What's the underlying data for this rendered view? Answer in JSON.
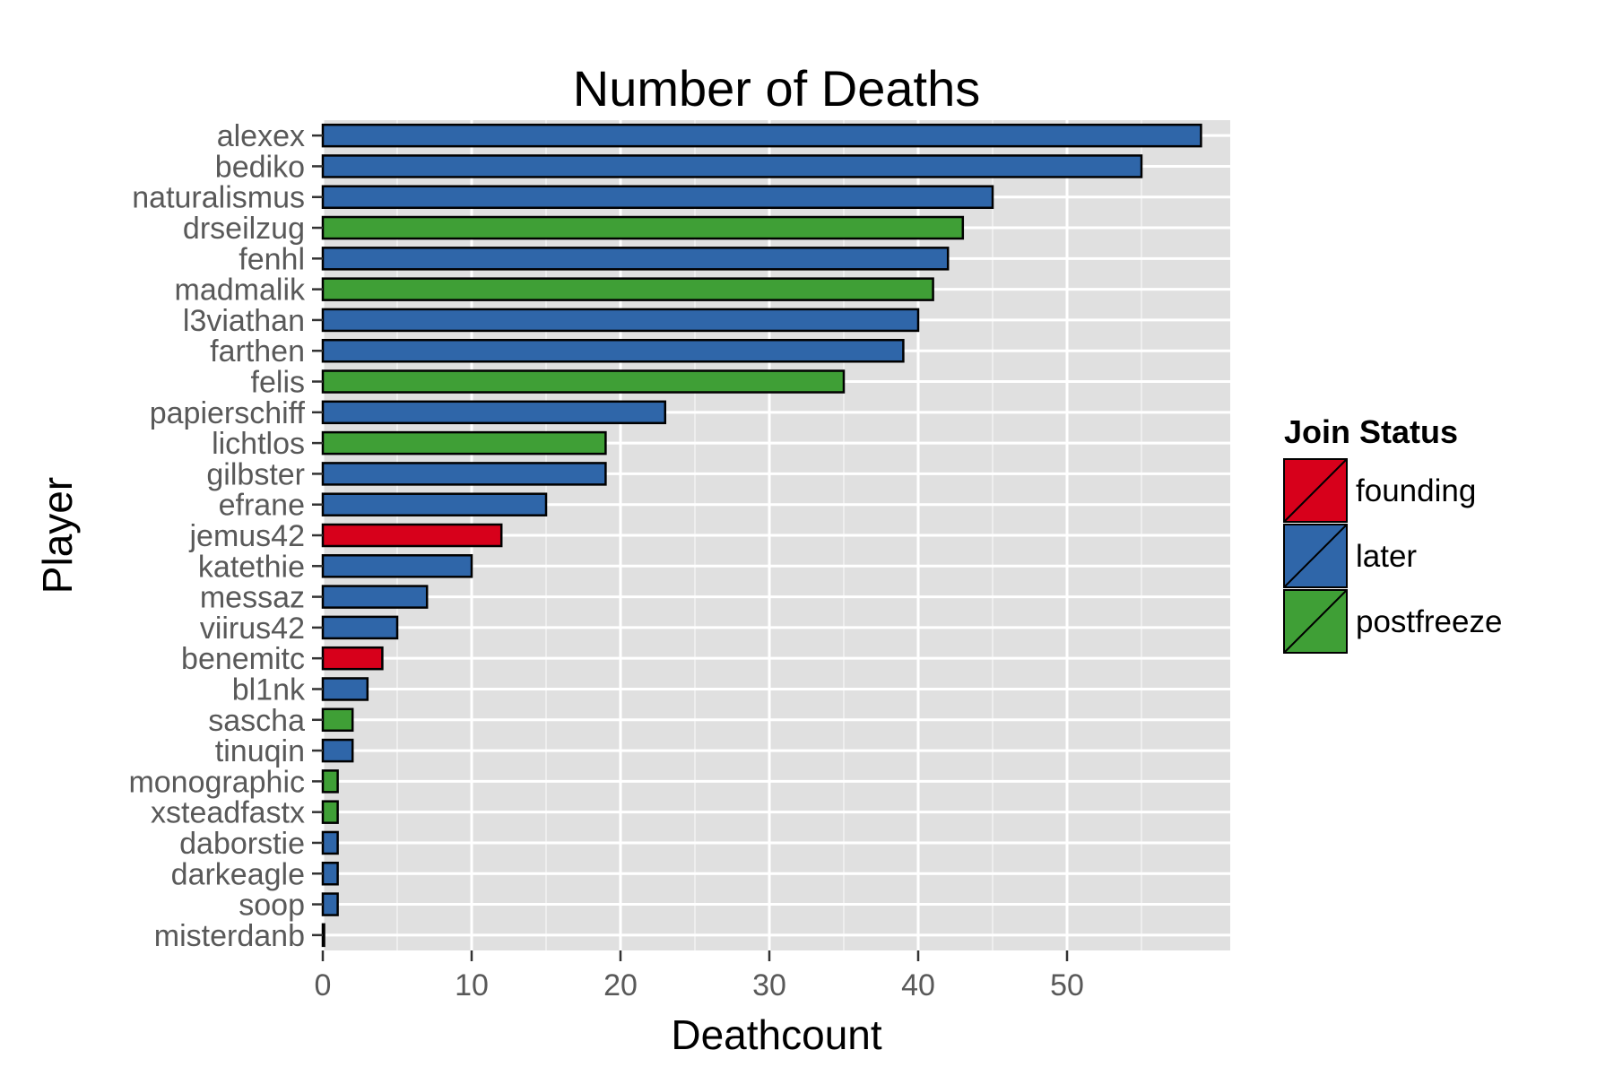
{
  "chart_data": {
    "type": "bar",
    "orientation": "horizontal",
    "title": "Number of Deaths",
    "xlabel": "Deathcount",
    "ylabel": "Player",
    "xlim": [
      0,
      61
    ],
    "xticks": [
      0,
      10,
      20,
      30,
      40,
      50
    ],
    "grid": true,
    "legend": {
      "title": "Join Status",
      "position": "right",
      "entries": [
        {
          "label": "founding",
          "color": "#d7001b"
        },
        {
          "label": "later",
          "color": "#2f66a9"
        },
        {
          "label": "postfreeze",
          "color": "#3f9f36"
        }
      ]
    },
    "categories": [
      "alexex",
      "bediko",
      "naturalismus",
      "drseilzug",
      "fenhl",
      "madmalik",
      "l3viathan",
      "farthen",
      "felis",
      "papierschiff",
      "lichtlos",
      "gilbster",
      "efrane",
      "jemus42",
      "katethie",
      "messaz",
      "viirus42",
      "benemitc",
      "bl1nk",
      "sascha",
      "tinuqin",
      "monographic",
      "xsteadfastx",
      "daborstie",
      "darkeagle",
      "soop",
      "misterdanb"
    ],
    "values": [
      59,
      55,
      45,
      43,
      42,
      41,
      40,
      39,
      35,
      23,
      19,
      19,
      15,
      12,
      10,
      7,
      5,
      4,
      3,
      2,
      2,
      1,
      1,
      1,
      1,
      1,
      0
    ],
    "groups": [
      "later",
      "later",
      "later",
      "postfreeze",
      "later",
      "postfreeze",
      "later",
      "later",
      "postfreeze",
      "later",
      "postfreeze",
      "later",
      "later",
      "founding",
      "later",
      "later",
      "later",
      "founding",
      "later",
      "postfreeze",
      "later",
      "postfreeze",
      "postfreeze",
      "later",
      "later",
      "later",
      "later"
    ]
  }
}
